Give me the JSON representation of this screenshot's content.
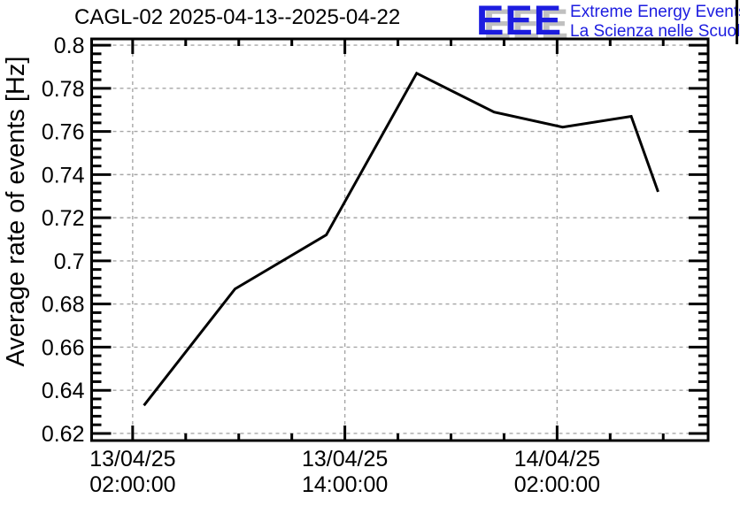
{
  "header": {
    "title": "CAGL-02 2025-04-13--2025-04-22",
    "logo": {
      "acronym": "EEE",
      "line1": "Extreme Energy Events",
      "line2": "La Scienza nelle Scuole",
      "text_color": "#1c1ce0",
      "shadow_color": "#c0c0c0"
    }
  },
  "chart_data": {
    "type": "line",
    "title": "CAGL-02 2025-04-13--2025-04-22",
    "xlabel": "",
    "ylabel": "Average rate of events [Hz]",
    "line_color": "#000000",
    "background_color": "#ffffff",
    "grid": {
      "visible": true,
      "color": "#a6a6a6",
      "style": "dashed"
    },
    "axes": {
      "y": {
        "min": 0.6167,
        "max": 0.8029,
        "tick_values": [
          0.62,
          0.64,
          0.66,
          0.68,
          0.7,
          0.72,
          0.74,
          0.76,
          0.78,
          0.8
        ],
        "tick_labels": [
          "0.62",
          "0.64",
          "0.66",
          "0.68",
          "0.7",
          "0.72",
          "0.74",
          "0.76",
          "0.78",
          "0.8"
        ],
        "minor_step": 0.004
      },
      "x": {
        "unit": "hours since 13/04/25 00:00:00",
        "min": -0.32,
        "max": 34.54,
        "major_hours": [
          2,
          14,
          26
        ],
        "minor_step_hours": 3,
        "tick_labels": [
          {
            "date": "13/04/25",
            "time": "02:00:00"
          },
          {
            "date": "13/04/25",
            "time": "14:00:00"
          },
          {
            "date": "14/04/25",
            "time": "02:00:00"
          }
        ]
      }
    },
    "series": [
      {
        "name": "average-rate-of-events",
        "points": [
          {
            "x_hours": 2.64,
            "time": "13/04/25 02:38",
            "value": 0.633
          },
          {
            "x_hours": 7.79,
            "time": "13/04/25 07:47",
            "value": 0.687
          },
          {
            "x_hours": 12.95,
            "time": "13/04/25 12:57",
            "value": 0.712
          },
          {
            "x_hours": 18.06,
            "time": "13/04/25 18:04",
            "value": 0.787
          },
          {
            "x_hours": 22.44,
            "time": "13/04/25 22:26",
            "value": 0.769
          },
          {
            "x_hours": 26.31,
            "time": "14/04/25 02:19",
            "value": 0.762
          },
          {
            "x_hours": 30.19,
            "time": "14/04/25 06:11",
            "value": 0.767
          },
          {
            "x_hours": 31.71,
            "time": "14/04/25 07:43",
            "value": 0.732
          }
        ]
      }
    ]
  }
}
